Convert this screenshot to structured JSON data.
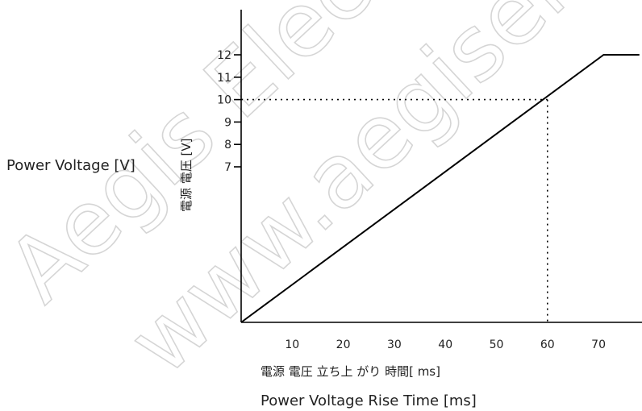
{
  "watermark": {
    "line1": "Aegis Electronics",
    "line2": "www.aegiselect"
  },
  "chart_data": {
    "type": "line",
    "title": "",
    "xlabel": "Power Voltage Rise Time [ms]",
    "xlabel_jp": "電源 電圧 立ち上 がり 時間[ ms]",
    "ylabel": "Power Voltage [V]",
    "ylabel_jp": "電源 電圧 [V]",
    "xlim": [
      0,
      78
    ],
    "ylim": [
      0,
      12
    ],
    "x_ticks": [
      10,
      20,
      30,
      40,
      50,
      60,
      70
    ],
    "y_ticks": [
      7,
      8,
      9,
      10,
      11,
      12
    ],
    "series": [
      {
        "x": [
          0,
          71,
          78
        ],
        "y": [
          0,
          12,
          12
        ]
      }
    ],
    "reference_point": {
      "x": 60,
      "y": 10,
      "style": "dotted"
    },
    "grid": false,
    "legend": "none"
  }
}
